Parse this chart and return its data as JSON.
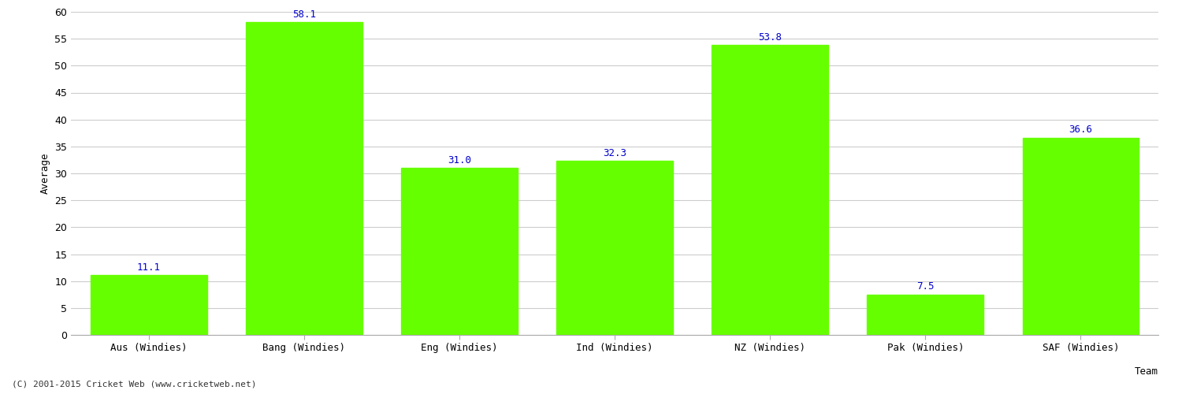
{
  "categories": [
    "Aus (Windies)",
    "Bang (Windies)",
    "Eng (Windies)",
    "Ind (Windies)",
    "NZ (Windies)",
    "Pak (Windies)",
    "SAF (Windies)"
  ],
  "values": [
    11.1,
    58.1,
    31.0,
    32.3,
    53.8,
    7.5,
    36.6
  ],
  "bar_color": "#66ff00",
  "bar_edge_color": "#66ff00",
  "label_color": "#0000cc",
  "xlabel": "Team",
  "ylabel": "Average",
  "ylim": [
    0,
    60
  ],
  "yticks": [
    0,
    5,
    10,
    15,
    20,
    25,
    30,
    35,
    40,
    45,
    50,
    55,
    60
  ],
  "background_color": "#ffffff",
  "grid_color": "#cccccc",
  "footer": "(C) 2001-2015 Cricket Web (www.cricketweb.net)",
  "label_fontsize": 9,
  "axis_fontsize": 9,
  "bar_width": 0.75
}
